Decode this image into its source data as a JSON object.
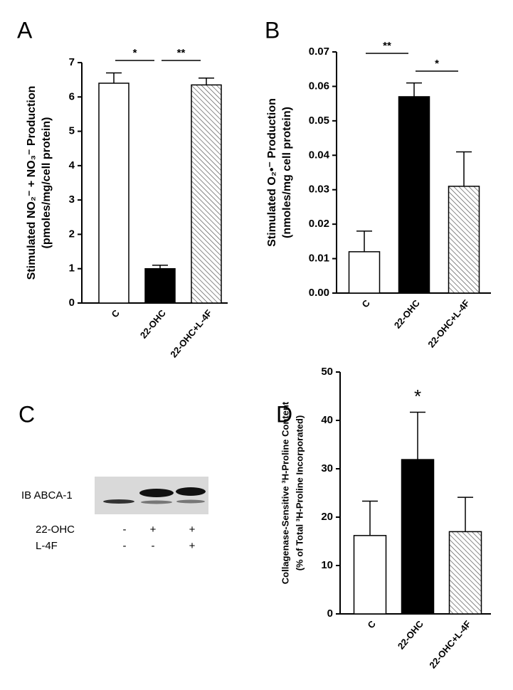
{
  "chart_data": [
    {
      "type": "bar",
      "panel": "A",
      "ylabel": [
        "Stimulated NO₂⁻ + NO₃⁻ Production",
        "(pmoles/mg/cell protein)"
      ],
      "categories": [
        "C",
        "22-OHC",
        "22-OHC+L-4F"
      ],
      "values": [
        6.4,
        1.0,
        6.35
      ],
      "errors": [
        0.3,
        0.1,
        0.2
      ],
      "colors": [
        "#ffffff",
        "#000000",
        "#ffffff"
      ],
      "hatched": [
        false,
        false,
        true
      ],
      "ylim": [
        0,
        7
      ],
      "yticks": [
        0,
        1,
        2,
        3,
        4,
        5,
        6,
        7
      ],
      "annotations": [
        {
          "text": "*",
          "between": [
            "C",
            "22-OHC"
          ]
        },
        {
          "text": "**",
          "between": [
            "22-OHC",
            "22-OHC+L-4F"
          ]
        }
      ]
    },
    {
      "type": "bar",
      "panel": "B",
      "ylabel": [
        "Stimulated O₂•⁻ Production",
        "(nmoles/mg cell protein)"
      ],
      "categories": [
        "C",
        "22-OHC",
        "22-OHC+L-4F"
      ],
      "values": [
        0.012,
        0.057,
        0.031
      ],
      "errors": [
        0.006,
        0.004,
        0.01
      ],
      "colors": [
        "#ffffff",
        "#000000",
        "#ffffff"
      ],
      "hatched": [
        false,
        false,
        true
      ],
      "ylim": [
        0,
        0.07
      ],
      "yticks": [
        {
          "value": 0,
          "label": "0.00"
        },
        {
          "value": 0.01,
          "label": "0.01"
        },
        {
          "value": 0.02,
          "label": "0.02"
        },
        {
          "value": 0.03,
          "label": "0.03"
        },
        {
          "value": 0.04,
          "label": "0.04"
        },
        {
          "value": 0.05,
          "label": "0.05"
        },
        {
          "value": 0.06,
          "label": "0.06"
        },
        {
          "value": 0.07,
          "label": "0.07"
        }
      ],
      "annotations": [
        {
          "text": "**",
          "between": [
            "C",
            "22-OHC"
          ]
        },
        {
          "text": "*",
          "between": [
            "22-OHC",
            "22-OHC+L-4F"
          ]
        }
      ]
    },
    {
      "type": "bar",
      "panel": "D",
      "ylabel": [
        "Collagenase-Sensitive ³H-Proline Content",
        "(% of Total ³H-Proline Incorporated)"
      ],
      "categories": [
        "C",
        "22-OHC",
        "22-OHC+L-4F"
      ],
      "values": [
        16.2,
        31.9,
        17.0
      ],
      "errors": [
        7.1,
        9.8,
        7.1
      ],
      "colors": [
        "#ffffff",
        "#000000",
        "#ffffff"
      ],
      "hatched": [
        false,
        false,
        true
      ],
      "ylim": [
        0,
        50
      ],
      "yticks": [
        0,
        10,
        20,
        30,
        40,
        50
      ],
      "annotations": [
        {
          "text": "*",
          "between": [
            "22-OHC"
          ]
        }
      ]
    }
  ],
  "blot": {
    "panel": "C",
    "antibody": "IB ABCA-1",
    "rows": [
      {
        "label": "22-OHC",
        "cells": [
          "-",
          "+",
          "+"
        ]
      },
      {
        "label": "L-4F",
        "cells": [
          "-",
          "-",
          "+"
        ]
      }
    ]
  }
}
